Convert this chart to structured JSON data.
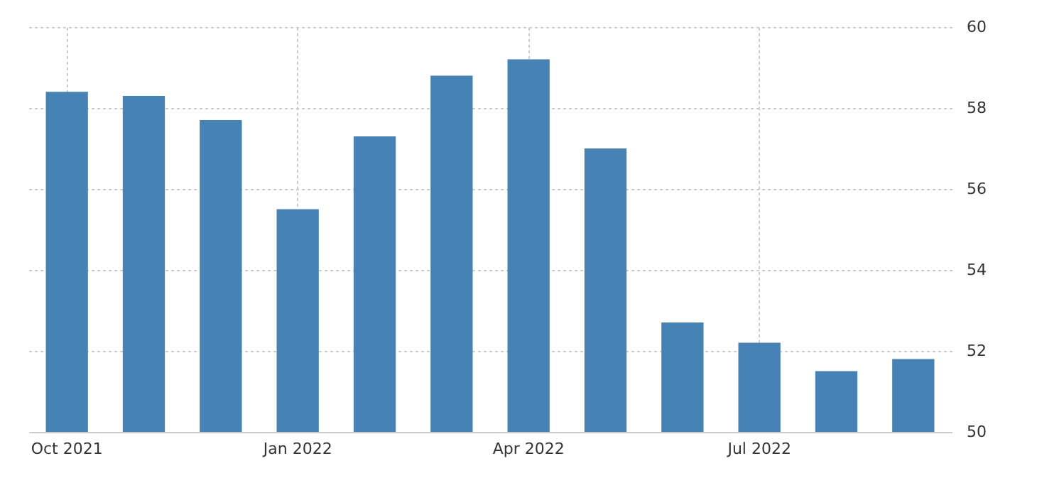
{
  "chart_data": {
    "type": "bar",
    "categories": [
      "Oct 2021",
      null,
      null,
      "Jan 2022",
      null,
      null,
      "Apr 2022",
      null,
      null,
      "Jul 2022",
      null,
      null
    ],
    "values": [
      58.4,
      58.3,
      57.7,
      55.5,
      57.3,
      58.8,
      59.2,
      57.0,
      52.7,
      52.2,
      51.5,
      51.8
    ],
    "color": "#4682b4",
    "ylim": [
      50,
      60
    ],
    "yticks": [
      50,
      52,
      54,
      56,
      58,
      60
    ],
    "grid": true
  }
}
